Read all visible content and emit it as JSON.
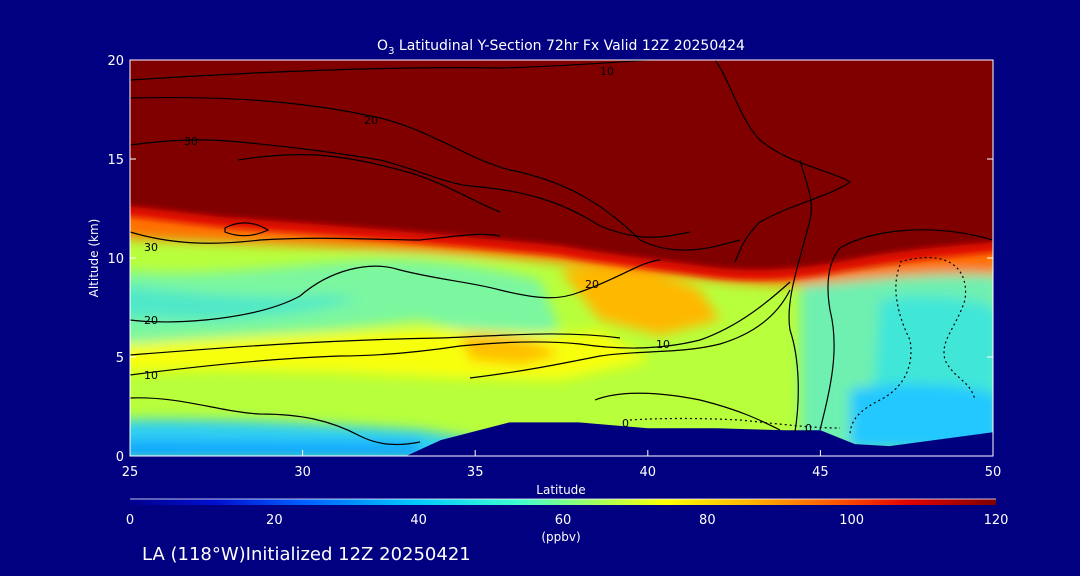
{
  "chart_data": {
    "type": "heatmap",
    "title_prefix": "O",
    "title_sub": "3",
    "title_rest": " Latitudinal Y-Section 72hr  Fx Valid 12Z 20250424",
    "xlabel": "Latitude",
    "ylabel": "Altitude (km)",
    "xlim": [
      25,
      50
    ],
    "ylim": [
      0,
      20
    ],
    "x_ticks": [
      "25",
      "30",
      "35",
      "40",
      "45",
      "50"
    ],
    "y_ticks": [
      "0",
      "5",
      "10",
      "15",
      "20"
    ],
    "colorbar": {
      "min": 0,
      "max": 120,
      "ticks": [
        "0",
        "20",
        "40",
        "60",
        "80",
        "100",
        "120"
      ],
      "unit": "(ppbv)"
    },
    "contour_labels": [
      "10",
      "20",
      "30",
      "30",
      "20",
      "10",
      "20",
      "10",
      "0",
      "0"
    ],
    "terrain": [
      [
        33,
        0
      ],
      [
        34,
        0.8
      ],
      [
        36,
        1.7
      ],
      [
        38,
        1.7
      ],
      [
        40,
        1.4
      ],
      [
        42,
        1.4
      ],
      [
        44,
        1.3
      ],
      [
        45,
        1.3
      ],
      [
        46,
        0.6
      ],
      [
        47,
        0.5
      ],
      [
        50,
        1.2
      ]
    ]
  },
  "footer": {
    "text": "LA (118°W)Initialized 12Z 20250421"
  },
  "colors": {
    "background": "#000080",
    "high_ozone": "#800000",
    "terrain": "#00007f"
  }
}
